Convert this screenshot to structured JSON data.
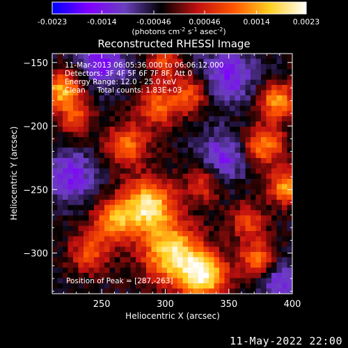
{
  "chart_data": {
    "type": "heatmap",
    "title": "Reconstructed RHESSI Image",
    "xlabel": "Heliocentric X (arcsec)",
    "ylabel": "Heliocentric Y (arcsec)",
    "xlim": [
      211,
      400
    ],
    "ylim": [
      -332,
      -143
    ],
    "xticks": [
      250,
      300,
      350,
      400
    ],
    "yticks": [
      -150,
      -200,
      -250,
      -300
    ],
    "colorbar": {
      "range": [
        -0.0023,
        0.0023
      ],
      "ticks": [
        "-0.0023",
        "-0.0014",
        "-0.00046",
        "0.00046",
        "0.0014",
        "0.0023"
      ],
      "colors": [
        "#0000ff",
        "#8000ff",
        "#6a3fbf",
        "#000000",
        "#c01010",
        "#ff5500",
        "#ffd020",
        "#ffffff"
      ],
      "unit_main": "(photons cm",
      "unit_e1": "-2",
      "unit_s": " s",
      "unit_e2": "-1",
      "unit_asec": " asec",
      "unit_e3": "-2",
      "unit_end": ")"
    },
    "annotations": [
      "11-Mar-2013 06:05:36.000 to 06:06:12.000",
      "Detectors: 3F 4F 5F 6F 7F 8F, Att 0",
      "Energy Range: 12.0 - 25.0 keV",
      "Clean     Total counts: 1.83E+03"
    ],
    "peak_label": "Position of Peak = [287,-263]",
    "peak": [
      287,
      -263
    ],
    "max_value": 0.0023,
    "hot_sources": [
      {
        "x": 287,
        "y": -263,
        "amp": 1.0,
        "sigma": 14
      },
      {
        "x": 305,
        "y": -300,
        "amp": 0.95,
        "sigma": 16
      },
      {
        "x": 330,
        "y": -318,
        "amp": 1.0,
        "sigma": 13
      },
      {
        "x": 260,
        "y": -275,
        "amp": 0.7,
        "sigma": 12
      },
      {
        "x": 240,
        "y": -300,
        "amp": 0.5,
        "sigma": 11
      },
      {
        "x": 270,
        "y": -215,
        "amp": 0.6,
        "sigma": 12
      },
      {
        "x": 220,
        "y": -172,
        "amp": 0.85,
        "sigma": 11
      },
      {
        "x": 230,
        "y": -195,
        "amp": 0.45,
        "sigma": 9
      },
      {
        "x": 295,
        "y": -185,
        "amp": 0.6,
        "sigma": 11
      },
      {
        "x": 320,
        "y": -175,
        "amp": 0.55,
        "sigma": 10
      },
      {
        "x": 330,
        "y": -245,
        "amp": 0.45,
        "sigma": 10
      },
      {
        "x": 388,
        "y": -180,
        "amp": 0.75,
        "sigma": 10
      },
      {
        "x": 378,
        "y": -215,
        "amp": 0.7,
        "sigma": 11
      },
      {
        "x": 395,
        "y": -248,
        "amp": 0.8,
        "sigma": 9
      },
      {
        "x": 365,
        "y": -275,
        "amp": 0.5,
        "sigma": 10
      },
      {
        "x": 372,
        "y": -305,
        "amp": 0.6,
        "sigma": 10
      },
      {
        "x": 300,
        "y": -150,
        "amp": 0.5,
        "sigma": 9
      }
    ],
    "cold_sources": [
      {
        "x": 250,
        "y": -150,
        "amp": 0.5,
        "sigma": 14
      },
      {
        "x": 350,
        "y": -160,
        "amp": 0.45,
        "sigma": 16
      },
      {
        "x": 225,
        "y": -240,
        "amp": 0.45,
        "sigma": 14
      },
      {
        "x": 345,
        "y": -225,
        "amp": 0.45,
        "sigma": 13
      },
      {
        "x": 390,
        "y": -325,
        "amp": 0.4,
        "sigma": 12
      }
    ]
  },
  "footer_date": "11-May-2022 22:00"
}
